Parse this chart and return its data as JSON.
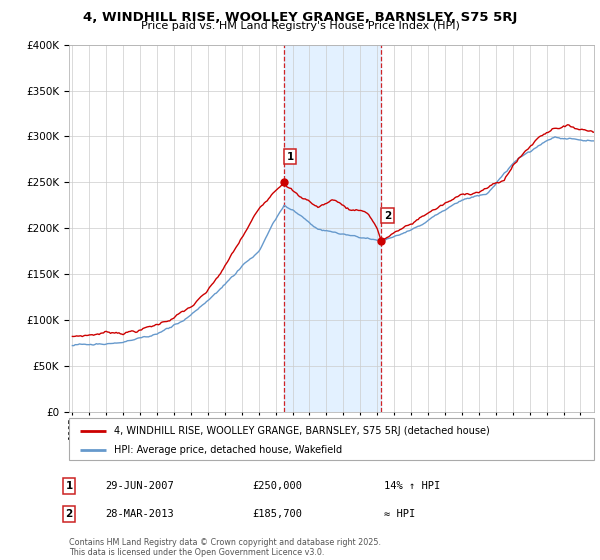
{
  "title": "4, WINDHILL RISE, WOOLLEY GRANGE, BARNSLEY, S75 5RJ",
  "subtitle": "Price paid vs. HM Land Registry's House Price Index (HPI)",
  "ylim": [
    0,
    400000
  ],
  "xlim_start": 1994.8,
  "xlim_end": 2025.8,
  "sale1_date": "29-JUN-2007",
  "sale1_price": 250000,
  "sale1_label": "14% ↑ HPI",
  "sale1_x": 2007.5,
  "sale1_y": 250000,
  "sale2_date": "28-MAR-2013",
  "sale2_price": 185700,
  "sale2_label": "≈ HPI",
  "sale2_x": 2013.25,
  "sale2_y": 185700,
  "shade_x1": 2007.5,
  "shade_x2": 2013.25,
  "line1_label": "4, WINDHILL RISE, WOOLLEY GRANGE, BARNSLEY, S75 5RJ (detached house)",
  "line2_label": "HPI: Average price, detached house, Wakefield",
  "footnote": "Contains HM Land Registry data © Crown copyright and database right 2025.\nThis data is licensed under the Open Government Licence v3.0.",
  "red_color": "#cc0000",
  "blue_color": "#6699cc",
  "shade_color": "#ddeeff",
  "background_color": "#ffffff",
  "grid_color": "#cccccc"
}
